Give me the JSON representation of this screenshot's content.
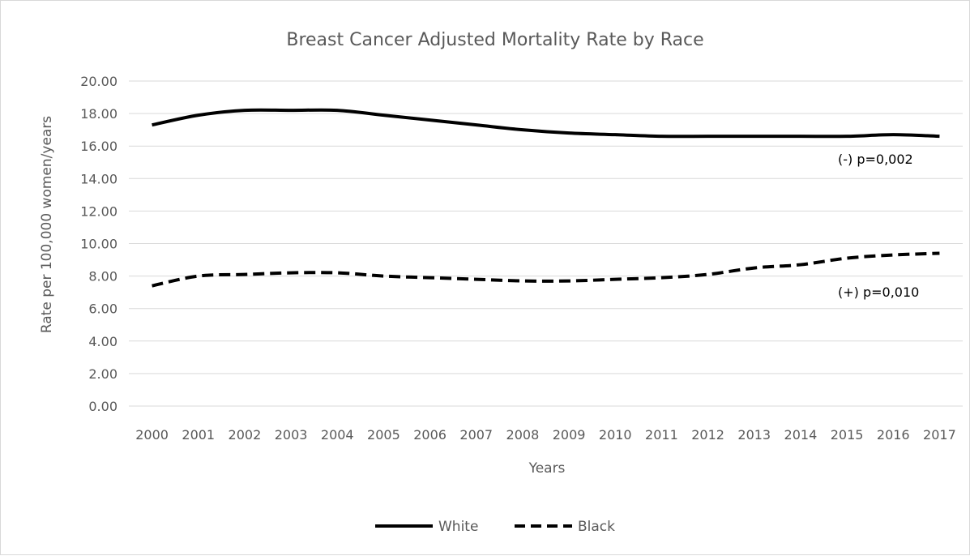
{
  "chart_data": {
    "type": "line",
    "title": "Breast Cancer Adjusted Mortality  Rate by Race",
    "xlabel": "Years",
    "ylabel": "Rate per 100,000 women/years",
    "categories": [
      "2000",
      "2001",
      "2002",
      "2003",
      "2004",
      "2005",
      "2006",
      "2007",
      "2008",
      "2009",
      "2010",
      "2011",
      "2012",
      "2013",
      "2014",
      "2015",
      "2016",
      "2017"
    ],
    "ylim": [
      0,
      20
    ],
    "yticks": [
      "0.00",
      "2.00",
      "4.00",
      "6.00",
      "8.00",
      "10.00",
      "12.00",
      "14.00",
      "16.00",
      "18.00",
      "20.00"
    ],
    "grid": true,
    "legend_position": "bottom",
    "series": [
      {
        "name": "White",
        "style": "solid",
        "color": "#000000",
        "values": [
          17.3,
          17.9,
          18.2,
          18.2,
          18.2,
          17.9,
          17.6,
          17.3,
          17.0,
          16.8,
          16.7,
          16.6,
          16.6,
          16.6,
          16.6,
          16.6,
          16.7,
          16.6
        ]
      },
      {
        "name": "Black",
        "style": "dashed",
        "color": "#000000",
        "values": [
          7.4,
          8.0,
          8.1,
          8.2,
          8.2,
          8.0,
          7.9,
          7.8,
          7.7,
          7.7,
          7.8,
          7.9,
          8.1,
          8.5,
          8.7,
          9.1,
          9.3,
          9.4
        ]
      }
    ],
    "annotations": [
      {
        "text": "(-) p=0,002",
        "series": "White"
      },
      {
        "text": "(+) p=0,010",
        "series": "Black"
      }
    ]
  }
}
